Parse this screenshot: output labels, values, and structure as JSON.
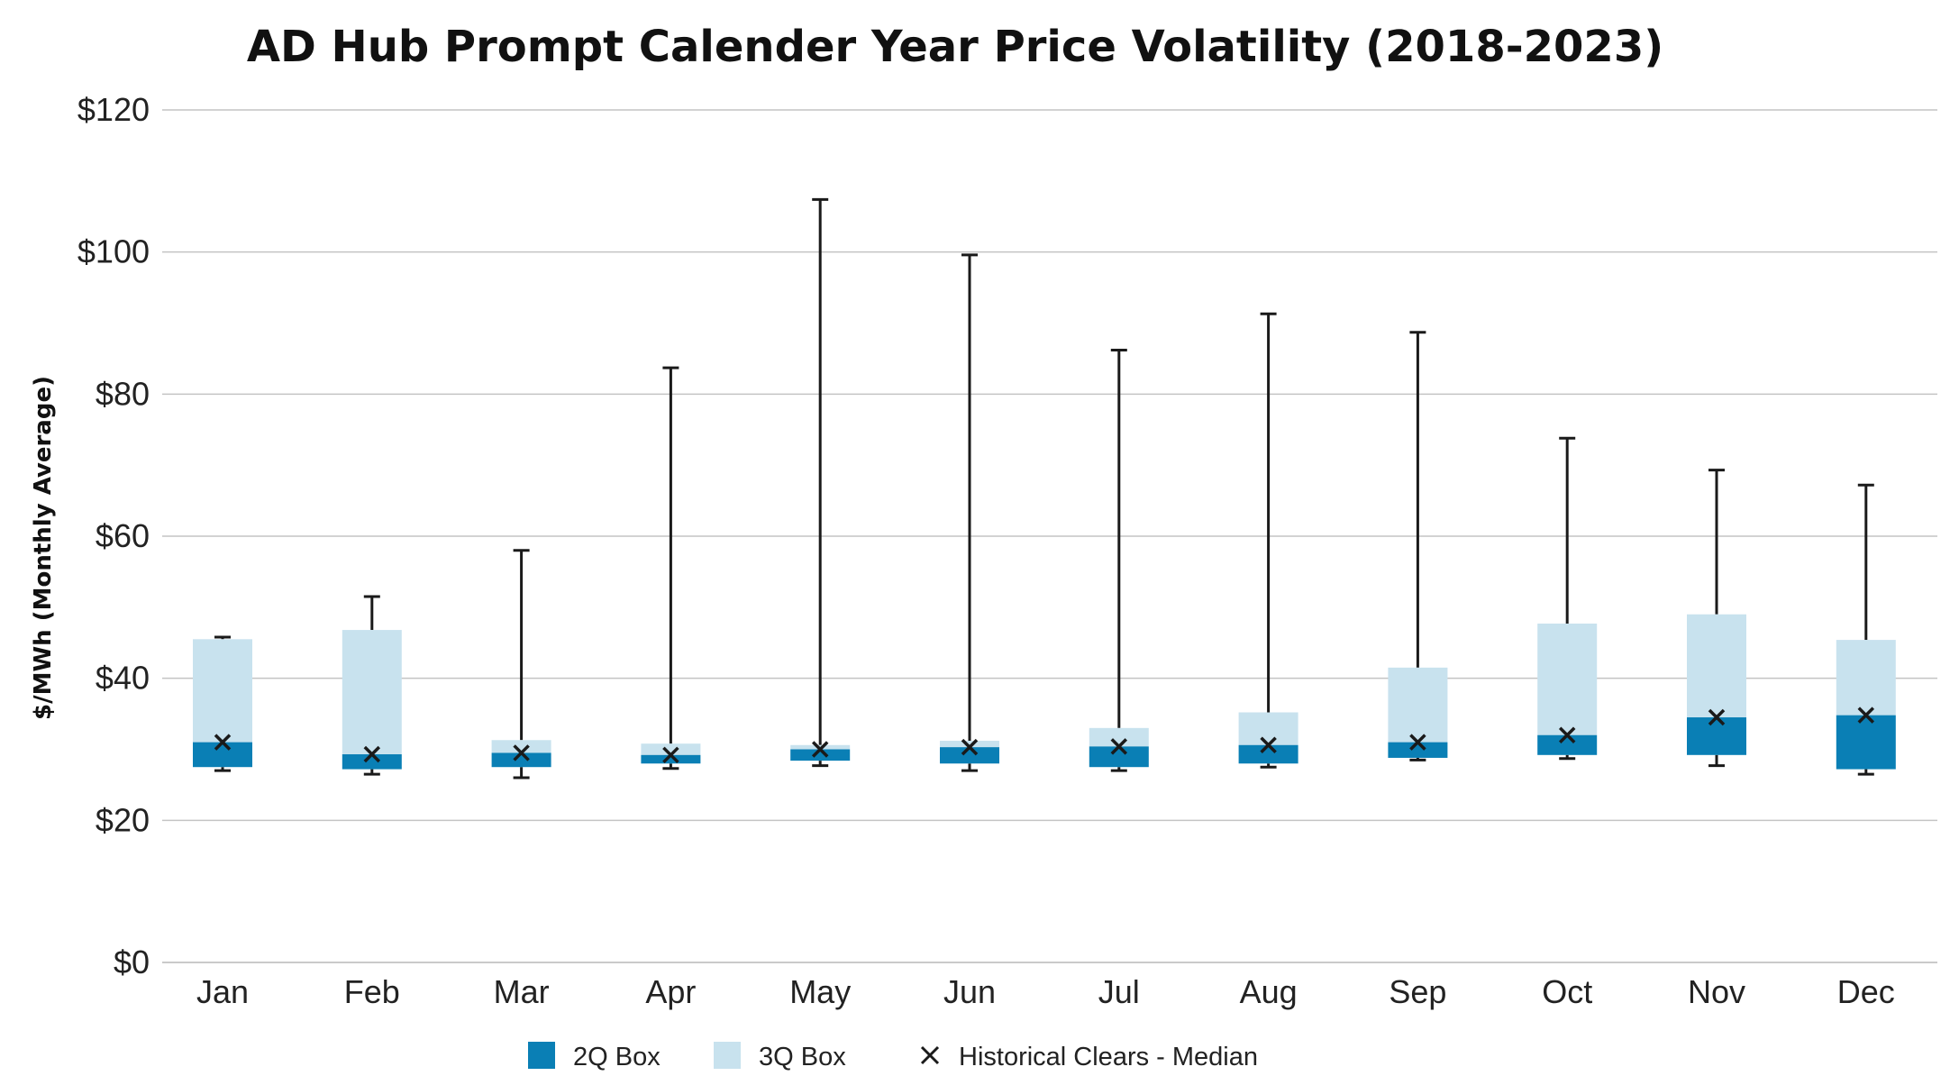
{
  "chart_data": {
    "type": "box",
    "title": "AD Hub Prompt Calender Year Price Volatility (2018-2023)",
    "xlabel": "",
    "ylabel": "$/MWh (Monthly Average)",
    "ylim": [
      0,
      120
    ],
    "yticks": [
      0,
      20,
      40,
      60,
      80,
      100,
      120
    ],
    "ytick_labels": [
      "$0",
      "$20",
      "$40",
      "$60",
      "$80",
      "$100",
      "$120"
    ],
    "grid": true,
    "legend_position": "bottom",
    "categories": [
      "Jan",
      "Feb",
      "Mar",
      "Apr",
      "May",
      "Jun",
      "Jul",
      "Aug",
      "Sep",
      "Oct",
      "Nov",
      "Dec"
    ],
    "series": [
      {
        "name": "2Q Box",
        "color": "#0a7fb5"
      },
      {
        "name": "3Q Box",
        "color": "#c8e2ee"
      },
      {
        "name": "Historical Clears - Median",
        "marker": "x",
        "color": "#1a1a1a"
      }
    ],
    "boxes": [
      {
        "month": "Jan",
        "min": 27.0,
        "q1": 27.5,
        "median": 31.0,
        "q3": 45.5,
        "max": 45.8
      },
      {
        "month": "Feb",
        "min": 26.5,
        "q1": 27.2,
        "median": 29.3,
        "q3": 46.8,
        "max": 51.5
      },
      {
        "month": "Mar",
        "min": 26.0,
        "q1": 27.5,
        "median": 29.5,
        "q3": 31.3,
        "max": 58.0
      },
      {
        "month": "Apr",
        "min": 27.3,
        "q1": 28.0,
        "median": 29.2,
        "q3": 30.8,
        "max": 83.7
      },
      {
        "month": "May",
        "min": 27.7,
        "q1": 28.4,
        "median": 30.0,
        "q3": 30.6,
        "max": 107.4
      },
      {
        "month": "Jun",
        "min": 27.0,
        "q1": 28.0,
        "median": 30.3,
        "q3": 31.2,
        "max": 99.6
      },
      {
        "month": "Jul",
        "min": 27.0,
        "q1": 27.5,
        "median": 30.4,
        "q3": 33.0,
        "max": 86.2
      },
      {
        "month": "Aug",
        "min": 27.5,
        "q1": 28.0,
        "median": 30.6,
        "q3": 35.2,
        "max": 91.3
      },
      {
        "month": "Sep",
        "min": 28.5,
        "q1": 28.8,
        "median": 31.0,
        "q3": 41.5,
        "max": 88.7
      },
      {
        "month": "Oct",
        "min": 28.7,
        "q1": 29.2,
        "median": 32.0,
        "q3": 47.7,
        "max": 73.8
      },
      {
        "month": "Nov",
        "min": 27.7,
        "q1": 29.2,
        "median": 34.5,
        "q3": 49.0,
        "max": 69.3
      },
      {
        "month": "Dec",
        "min": 26.5,
        "q1": 27.2,
        "median": 34.8,
        "q3": 45.4,
        "max": 67.2
      }
    ]
  }
}
